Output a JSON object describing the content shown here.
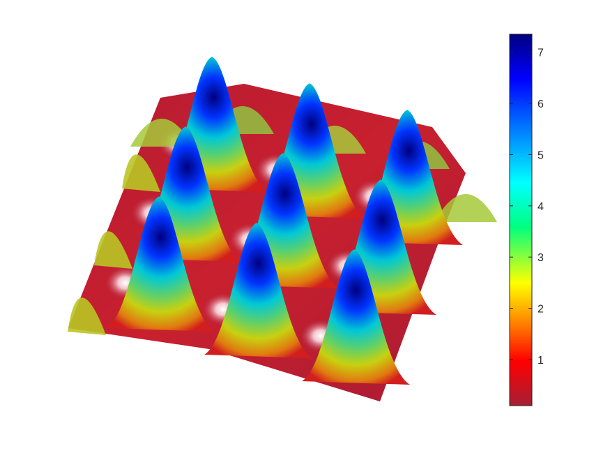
{
  "chart_data": {
    "type": "surface",
    "title": "",
    "xlabel": "",
    "ylabel": "",
    "zlabel": "",
    "grid": false,
    "axes_visible": false,
    "surface": {
      "description_free": true,
      "peak_grid": {
        "rows": 3,
        "cols": 3,
        "peak_values": [
          [
            7.3,
            7.3,
            7.3
          ],
          [
            7.3,
            7.3,
            7.3
          ],
          [
            7.3,
            7.3,
            7.3
          ]
        ]
      },
      "minimum_value": 0.1,
      "saddle_value": 1.0
    },
    "colorbar": {
      "limits": [
        0.1,
        7.35
      ],
      "ticks": [
        1,
        2,
        3,
        4,
        5,
        6,
        7
      ],
      "tick_labels": [
        "1",
        "2",
        "3",
        "4",
        "5",
        "6",
        "7"
      ],
      "colormap_stops": [
        "#a51f36",
        "#ff0000",
        "#ff7f00",
        "#ffff00",
        "#00ff7f",
        "#00ffff",
        "#007fff",
        "#0000ff",
        "#00007f"
      ]
    }
  }
}
